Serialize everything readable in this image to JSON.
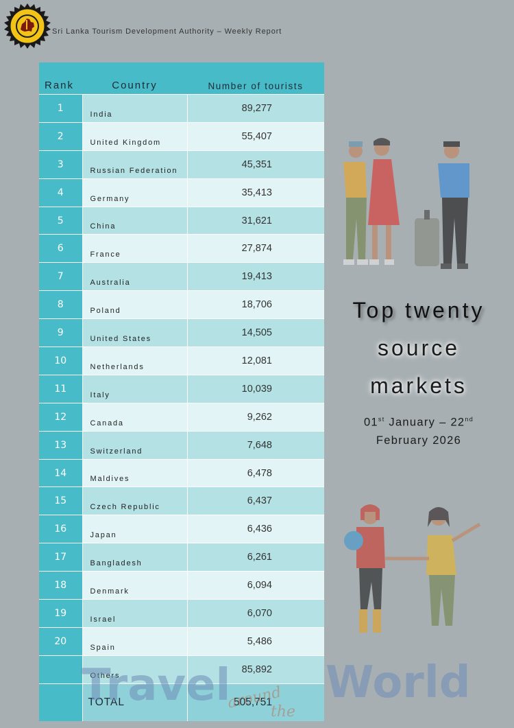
{
  "header": {
    "org_text": "Sri Lanka Tourism Development Authority – Weekly Report",
    "logo_icon": "sltda-emblem-icon"
  },
  "table": {
    "columns": [
      "Rank",
      "Country",
      "Number of tourists"
    ],
    "rows": [
      {
        "rank": "1",
        "country": "India",
        "tourists": "89,277"
      },
      {
        "rank": "2",
        "country": "United Kingdom",
        "tourists": "55,407"
      },
      {
        "rank": "3",
        "country": "Russian Federation",
        "tourists": "45,351"
      },
      {
        "rank": "4",
        "country": "Germany",
        "tourists": "35,413"
      },
      {
        "rank": "5",
        "country": "China",
        "tourists": "31,621"
      },
      {
        "rank": "6",
        "country": "France",
        "tourists": "27,874"
      },
      {
        "rank": "7",
        "country": "Australia",
        "tourists": "19,413"
      },
      {
        "rank": "8",
        "country": "Poland",
        "tourists": "18,706"
      },
      {
        "rank": "9",
        "country": "United States",
        "tourists": "14,505"
      },
      {
        "rank": "10",
        "country": "Netherlands",
        "tourists": "12,081"
      },
      {
        "rank": "11",
        "country": "Italy",
        "tourists": "10,039"
      },
      {
        "rank": "12",
        "country": "Canada",
        "tourists": "9,262"
      },
      {
        "rank": "13",
        "country": "Switzerland",
        "tourists": "7,648"
      },
      {
        "rank": "14",
        "country": "Maldives",
        "tourists": "6,478"
      },
      {
        "rank": "15",
        "country": "Czech Republic",
        "tourists": "6,437"
      },
      {
        "rank": "16",
        "country": "Japan",
        "tourists": "6,436"
      },
      {
        "rank": "17",
        "country": "Bangladesh",
        "tourists": "6,261"
      },
      {
        "rank": "18",
        "country": "Denmark",
        "tourists": "6,094"
      },
      {
        "rank": "19",
        "country": "Israel",
        "tourists": "6,070"
      },
      {
        "rank": "20",
        "country": "Spain",
        "tourists": "5,486"
      },
      {
        "rank": "",
        "country": "Others",
        "tourists": "85,892"
      }
    ],
    "total": {
      "label": "TOTAL",
      "value": "505,751"
    }
  },
  "side": {
    "title_lines": [
      "Top twenty",
      "source",
      "markets"
    ],
    "date_line1_pre": "01",
    "date_line1_sup1": "st",
    "date_line1_mid": " January – 22",
    "date_line1_sup2": "nd",
    "date_line2": "February 2026"
  },
  "art": {
    "travel_word1": "Travel",
    "travel_word2": "around",
    "travel_word3": "the",
    "travel_word4": "World"
  },
  "colors": {
    "background": "#a7afb2",
    "header_teal": "#48bbc8",
    "row_light": "#e2f4f5",
    "row_mid": "#b3e1e4",
    "total_row": "#8fd1d9"
  }
}
